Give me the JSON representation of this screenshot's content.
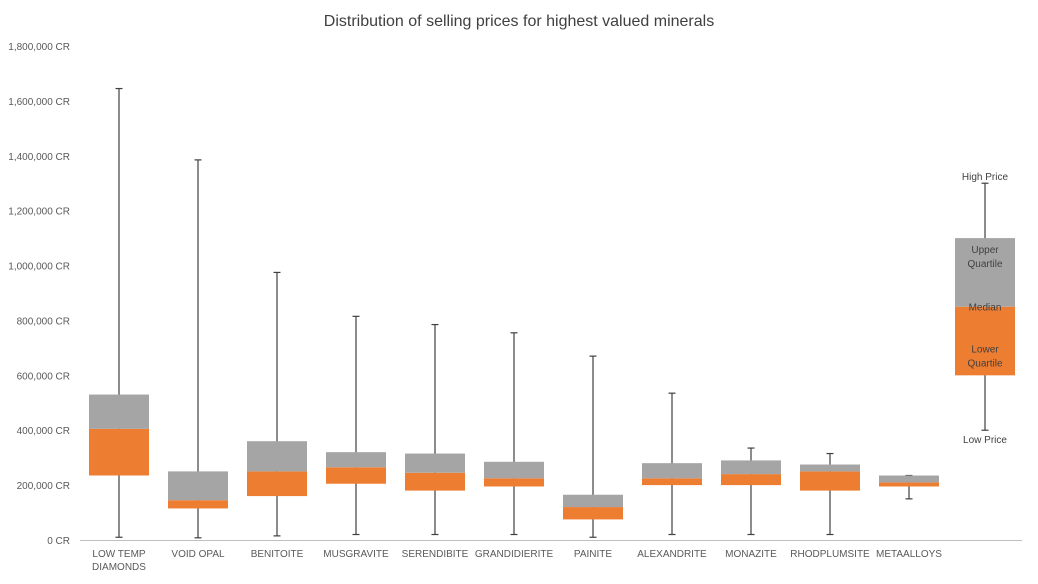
{
  "chart_data": {
    "type": "box",
    "title": "Distribution of selling prices for highest valued minerals",
    "ylim": [
      0,
      1800000
    ],
    "y_tick_values": [
      0,
      200000,
      400000,
      600000,
      800000,
      1000000,
      1200000,
      1400000,
      1600000,
      1800000
    ],
    "y_tick_labels": [
      "0 CR",
      "200,000 CR",
      "400,000 CR",
      "600,000 CR",
      "800,000 CR",
      "1,000,000 CR",
      "1,200,000 CR",
      "1,400,000 CR",
      "1,600,000 CR",
      "1,800,000 CR"
    ],
    "grid": false,
    "categories": [
      [
        "LOW TEMP",
        "DIAMONDS"
      ],
      [
        "VOID  OPAL"
      ],
      [
        "BENITOITE"
      ],
      [
        "MUSGRAVITE"
      ],
      [
        "SERENDIBITE"
      ],
      [
        "GRANDIDIERITE"
      ],
      [
        "PAINITE"
      ],
      [
        "ALEXANDRITE"
      ],
      [
        "MONAZITE"
      ],
      [
        "RHODPLUMSITE"
      ],
      [
        "METAALLOYS"
      ]
    ],
    "series": [
      {
        "low": 10000,
        "q1": 235000,
        "median": 405000,
        "q3": 530000,
        "high": 1645000
      },
      {
        "low": 8000,
        "q1": 115000,
        "median": 145000,
        "q3": 250000,
        "high": 1385000
      },
      {
        "low": 15000,
        "q1": 160000,
        "median": 250000,
        "q3": 360000,
        "high": 975000
      },
      {
        "low": 20000,
        "q1": 205000,
        "median": 265000,
        "q3": 320000,
        "high": 815000
      },
      {
        "low": 20000,
        "q1": 180000,
        "median": 245000,
        "q3": 315000,
        "high": 785000
      },
      {
        "low": 20000,
        "q1": 195000,
        "median": 225000,
        "q3": 285000,
        "high": 755000
      },
      {
        "low": 10000,
        "q1": 75000,
        "median": 120000,
        "q3": 165000,
        "high": 670000
      },
      {
        "low": 20000,
        "q1": 200000,
        "median": 225000,
        "q3": 280000,
        "high": 535000
      },
      {
        "low": 20000,
        "q1": 200000,
        "median": 240000,
        "q3": 290000,
        "high": 335000
      },
      {
        "low": 20000,
        "q1": 180000,
        "median": 250000,
        "q3": 275000,
        "high": 315000
      },
      {
        "low": 150000,
        "q1": 195000,
        "median": 210000,
        "q3": 235000,
        "high": 235000
      }
    ],
    "legend": {
      "high": "High Price",
      "upper_quartile": [
        "Upper",
        "Quartile"
      ],
      "median": "Median",
      "lower_quartile": [
        "Lower",
        "Quartile"
      ],
      "low": "Low Price",
      "example": {
        "low": 400000,
        "q1": 600000,
        "median": 850000,
        "q3": 1100000,
        "high": 1300000
      }
    },
    "colors": {
      "upper": "#a5a5a5",
      "lower": "#ed7d31",
      "whisker": "#404040",
      "axis": "#bfbfbf"
    }
  }
}
